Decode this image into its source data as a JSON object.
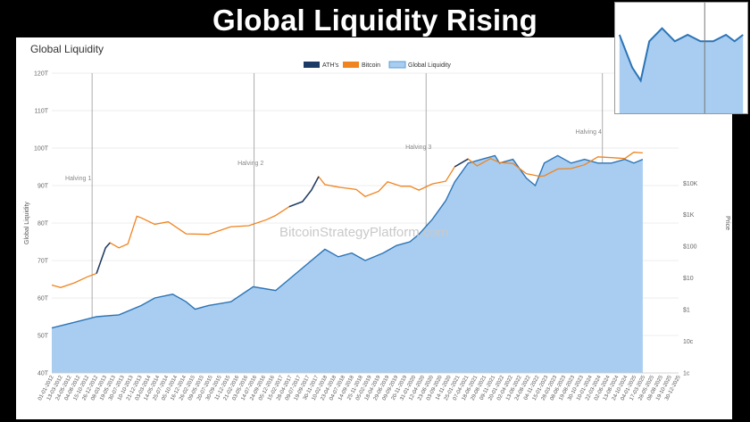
{
  "headline": "Global Liquidity Rising",
  "chart_data": {
    "type": "area",
    "title": "Global Liquidity",
    "ylabel_left": "Global Liquidity",
    "ylabel_right": "Price",
    "yscale_right": "log",
    "legend": [
      {
        "name": "ATH's",
        "color": "#1b3a66"
      },
      {
        "name": "Bitcoin",
        "color": "#f0841e"
      },
      {
        "name": "Global Liquidity",
        "color": "#a9cdf0"
      }
    ],
    "legend_position": "top-center",
    "y_left_ticks": [
      "40T",
      "50T",
      "60T",
      "70T",
      "80T",
      "90T",
      "100T",
      "110T",
      "120T"
    ],
    "y_left_range": [
      40,
      120
    ],
    "y_right_ticks": [
      "1c",
      "10c",
      "$1",
      "$10",
      "$100",
      "$1K",
      "$10K"
    ],
    "annotations": [
      "Halving 1",
      "Halving 2",
      "Halving 3",
      "Halving 4"
    ],
    "halving_dates": [
      "28-11-2012",
      "09-07-2016",
      "11-05-2020",
      "20-04-2024"
    ],
    "x_range": [
      "01-01-2012",
      "30-12-2025"
    ],
    "x_tick_labels": [
      "01-01-2012",
      "13-03-2012",
      "24-05-2012",
      "04-08-2012",
      "15-10-2012",
      "26-12-2012",
      "08-03-2013",
      "19-05-2013",
      "30-07-2013",
      "10-10-2013",
      "21-12-2013",
      "03-03-2014",
      "14-05-2014",
      "25-07-2014",
      "05-10-2014",
      "16-12-2014",
      "26-02-2015",
      "09-05-2015",
      "20-07-2015",
      "30-09-2015",
      "11-12-2015",
      "21-02-2016",
      "03-05-2016",
      "14-07-2016",
      "24-09-2016",
      "05-12-2016",
      "15-02-2017",
      "28-04-2017",
      "09-07-2017",
      "19-09-2017",
      "30-11-2017",
      "10-02-2018",
      "23-04-2018",
      "04-07-2018",
      "14-09-2018",
      "25-11-2018",
      "05-02-2019",
      "18-04-2019",
      "29-06-2019",
      "09-09-2019",
      "20-11-2019",
      "31-01-2020",
      "12-04-2020",
      "23-06-2020",
      "03-09-2020",
      "14-11-2020",
      "25-01-2021",
      "07-04-2021",
      "18-06-2021",
      "29-08-2021",
      "09-11-2021",
      "20-01-2022",
      "02-04-2022",
      "13-06-2022",
      "24-08-2022",
      "04-11-2022",
      "15-01-2023",
      "28-03-2023",
      "08-06-2023",
      "19-08-2023",
      "30-10-2023",
      "10-01-2024",
      "22-03-2024",
      "02-06-2024",
      "13-08-2024",
      "24-10-2024",
      "04-01-2025",
      "17-03-2025",
      "28-05-2025",
      "08-08-2025",
      "19-10-2025",
      "30-12-2025"
    ],
    "series": [
      {
        "name": "Global Liquidity",
        "unit": "T",
        "x": [
          2012.0,
          2012.5,
          2013.0,
          2013.5,
          2014.0,
          2014.3,
          2014.7,
          2015.0,
          2015.2,
          2015.5,
          2016.0,
          2016.5,
          2017.0,
          2017.3,
          2017.6,
          2017.9,
          2018.1,
          2018.4,
          2018.7,
          2019.0,
          2019.4,
          2019.7,
          2020.0,
          2020.2,
          2020.5,
          2020.8,
          2021.0,
          2021.3,
          2021.6,
          2021.9,
          2022.0,
          2022.3,
          2022.6,
          2022.8,
          2023.0,
          2023.3,
          2023.6,
          2023.9,
          2024.2,
          2024.5,
          2024.8,
          2025.0,
          2025.2
        ],
        "y": [
          52,
          53.5,
          55,
          55.5,
          58,
          60,
          61,
          59,
          57,
          58,
          59,
          63,
          62,
          65,
          68,
          71,
          73,
          71,
          72,
          70,
          72,
          74,
          75,
          77,
          81,
          86,
          91,
          96,
          97,
          98,
          96,
          97,
          92,
          90,
          96,
          98,
          96,
          97,
          96,
          96,
          97,
          96,
          97
        ]
      },
      {
        "name": "Bitcoin",
        "unit": "USD",
        "x": [
          2012.0,
          2012.2,
          2012.5,
          2012.8,
          2013.0,
          2013.2,
          2013.3,
          2013.5,
          2013.7,
          2013.9,
          2014.0,
          2014.3,
          2014.6,
          2015.0,
          2015.5,
          2016.0,
          2016.4,
          2016.8,
          2017.0,
          2017.3,
          2017.6,
          2017.8,
          2017.96,
          2018.1,
          2018.4,
          2018.8,
          2019.0,
          2019.3,
          2019.5,
          2019.8,
          2020.0,
          2020.2,
          2020.5,
          2020.8,
          2021.0,
          2021.3,
          2021.5,
          2021.8,
          2022.0,
          2022.3,
          2022.6,
          2022.9,
          2023.0,
          2023.3,
          2023.6,
          2023.9,
          2024.2,
          2024.5,
          2024.8,
          2025.0,
          2025.2
        ],
        "y": [
          6,
          5,
          7,
          11,
          14,
          90,
          130,
          90,
          120,
          900,
          800,
          500,
          600,
          250,
          240,
          420,
          450,
          700,
          950,
          1800,
          2600,
          6000,
          16000,
          9000,
          7500,
          6300,
          3800,
          5500,
          11000,
          8000,
          8000,
          6000,
          9500,
          11500,
          33000,
          58000,
          35000,
          60000,
          45000,
          42000,
          20000,
          16500,
          17000,
          28000,
          29000,
          38000,
          68000,
          64000,
          60000,
          95000,
          90000
        ]
      }
    ]
  }
}
